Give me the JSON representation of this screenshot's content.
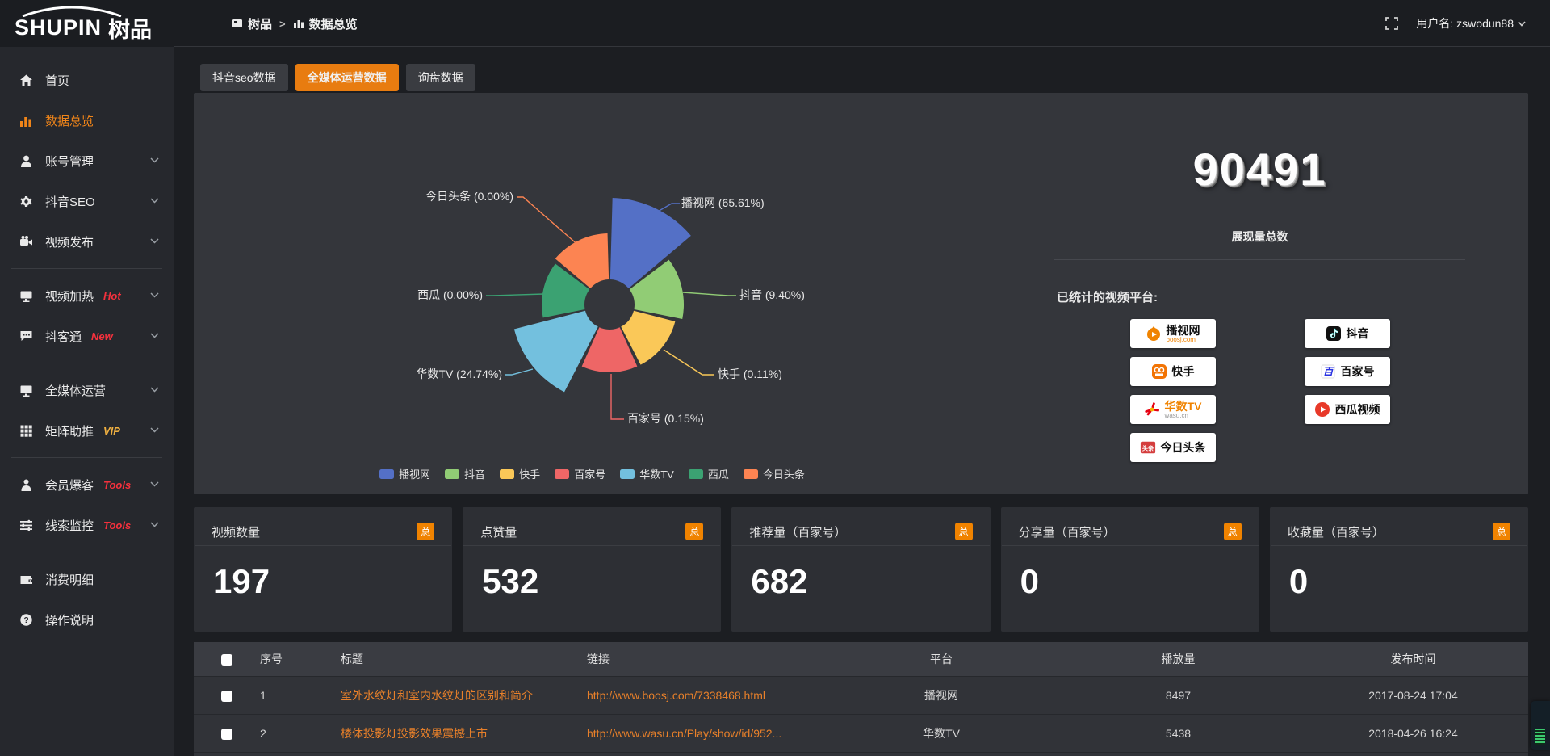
{
  "header": {
    "logo_en": "SHUPIN",
    "logo_cn": "树品",
    "breadcrumb": [
      "树品",
      "数据总览"
    ],
    "breadcrumb_separator": ">",
    "username": "用户名: zswodun88"
  },
  "sidebar": {
    "items": [
      {
        "label": "首页",
        "icon": "home",
        "chevron": false,
        "active": false,
        "badge": "",
        "divider_after": false
      },
      {
        "label": "数据总览",
        "icon": "bar-chart",
        "chevron": false,
        "active": true,
        "badge": "",
        "divider_after": false
      },
      {
        "label": "账号管理",
        "icon": "user",
        "chevron": true,
        "active": false,
        "badge": "",
        "divider_after": false
      },
      {
        "label": "抖音SEO",
        "icon": "gear",
        "chevron": true,
        "active": false,
        "badge": "",
        "divider_after": false
      },
      {
        "label": "视频发布",
        "icon": "video-camera",
        "chevron": true,
        "active": false,
        "badge": "",
        "divider_after": true
      },
      {
        "label": "视频加热",
        "icon": "monitor",
        "chevron": true,
        "active": false,
        "badge": "Hot",
        "badge_color": "#f5313d",
        "divider_after": false
      },
      {
        "label": "抖客通",
        "icon": "chat",
        "chevron": true,
        "active": false,
        "badge": "New",
        "badge_color": "#f5313d",
        "divider_after": true
      },
      {
        "label": "全媒体运营",
        "icon": "display",
        "chevron": true,
        "active": false,
        "badge": "",
        "divider_after": false
      },
      {
        "label": "矩阵助推",
        "icon": "grid",
        "chevron": true,
        "active": false,
        "badge": "VIP",
        "badge_color": "#efb041",
        "divider_after": true
      },
      {
        "label": "会员爆客",
        "icon": "person",
        "chevron": true,
        "active": false,
        "badge": "Tools",
        "badge_color": "#f5313d",
        "divider_after": false
      },
      {
        "label": "线索监控",
        "icon": "sliders",
        "chevron": true,
        "active": false,
        "badge": "Tools",
        "badge_color": "#f5313d",
        "divider_after": true
      },
      {
        "label": "消费明细",
        "icon": "wallet",
        "chevron": false,
        "active": false,
        "badge": "",
        "divider_after": false
      },
      {
        "label": "操作说明",
        "icon": "help",
        "chevron": false,
        "active": false,
        "badge": "",
        "divider_after": false
      }
    ]
  },
  "tabs": [
    {
      "label": "抖音seo数据",
      "active": false
    },
    {
      "label": "全媒体运营数据",
      "active": true
    },
    {
      "label": "询盘数据",
      "active": false
    }
  ],
  "chart_data": {
    "type": "pie",
    "subtype": "nightingale-rose",
    "series": [
      {
        "name": "播视网",
        "pct": 65.61,
        "color": "#5470c6"
      },
      {
        "name": "抖音",
        "pct": 9.4,
        "color": "#91cc75"
      },
      {
        "name": "快手",
        "pct": 0.11,
        "color": "#fac858"
      },
      {
        "name": "百家号",
        "pct": 0.15,
        "color": "#ee6666"
      },
      {
        "name": "华数TV",
        "pct": 24.74,
        "color": "#73c0de"
      },
      {
        "name": "西瓜",
        "pct": 0.0,
        "color": "#3ba272"
      },
      {
        "name": "今日头条",
        "pct": 0.0,
        "color": "#fc8452"
      }
    ],
    "legend": [
      "播视网",
      "抖音",
      "快手",
      "百家号",
      "华数TV",
      "西瓜",
      "今日头条"
    ],
    "legend_position": "bottom",
    "label_format": "{name} ({pct}%)"
  },
  "summary": {
    "total_value": "90491",
    "total_label": "展现量总数",
    "platforms_label": "已统计的视频平台:",
    "badges_left": [
      {
        "name": "播视网",
        "sub": "boosj.com",
        "sub_color": "#f08300",
        "icon": "boosj",
        "name_color": "#111111"
      },
      {
        "name": "快手",
        "sub": "",
        "icon": "kuaishou",
        "name_color": "#111111"
      },
      {
        "name": "华数TV",
        "sub": "wasu.cn",
        "sub_color": "#999999",
        "icon": "wasu",
        "name_color": "#f08300"
      },
      {
        "name": "今日头条",
        "sub": "",
        "icon": "toutiao",
        "name_color": "#111111"
      }
    ],
    "badges_right": [
      {
        "name": "抖音",
        "sub": "",
        "icon": "douyin",
        "name_color": "#111111"
      },
      {
        "name": "百家号",
        "sub": "",
        "icon": "baijiahao",
        "name_color": "#111111"
      },
      {
        "name": "西瓜视频",
        "sub": "",
        "icon": "xigua",
        "name_color": "#111111"
      }
    ]
  },
  "stat_cards": [
    {
      "title": "视频数量",
      "badge": "总",
      "value": "197"
    },
    {
      "title": "点赞量",
      "badge": "总",
      "value": "532"
    },
    {
      "title": "推荐量（百家号）",
      "badge": "总",
      "value": "682"
    },
    {
      "title": "分享量（百家号）",
      "badge": "总",
      "value": "0"
    },
    {
      "title": "收藏量（百家号）",
      "badge": "总",
      "value": "0"
    }
  ],
  "table": {
    "headers": [
      "序号",
      "标题",
      "链接",
      "平台",
      "播放量",
      "发布时间"
    ],
    "rows": [
      {
        "seq": "1",
        "title": "室外水纹灯和室内水纹灯的区别和简介",
        "link": "http://www.boosj.com/7338468.html",
        "platform": "播视网",
        "plays": "8497",
        "time": "2017-08-24 17:04"
      },
      {
        "seq": "2",
        "title": "楼体投影灯投影效果震撼上市",
        "link": "http://www.wasu.cn/Play/show/id/952...",
        "platform": "华数TV",
        "plays": "5438",
        "time": "2018-04-26 16:24"
      }
    ]
  }
}
